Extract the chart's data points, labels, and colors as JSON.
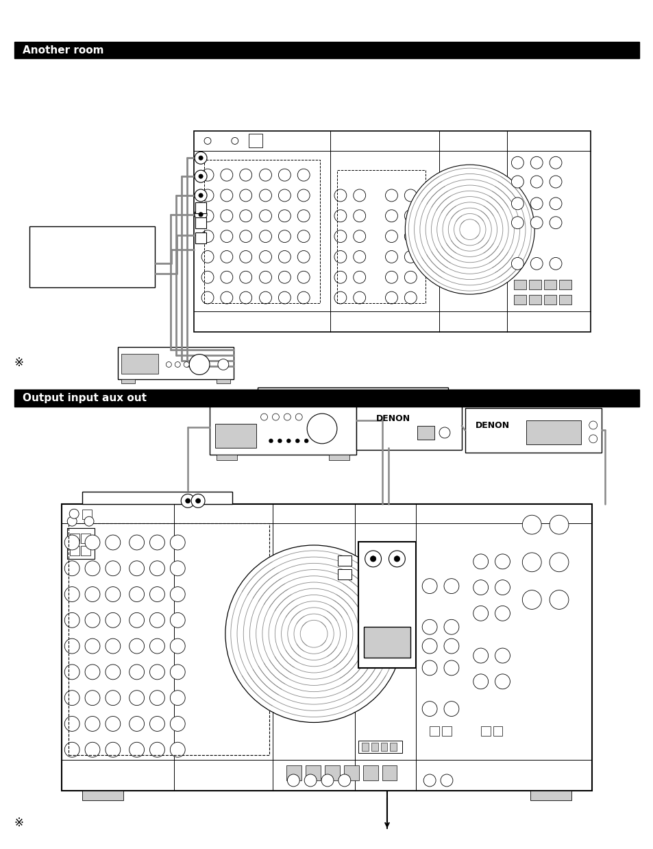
{
  "bg_color": "#ffffff",
  "header1_text": "Another room",
  "header2_text": "Output input aux out",
  "fig_width": 9.54,
  "fig_height": 12.38,
  "line_color": "#888888",
  "black": "#000000",
  "white": "#ffffff",
  "lgray": "#cccccc",
  "note_sym": "※"
}
